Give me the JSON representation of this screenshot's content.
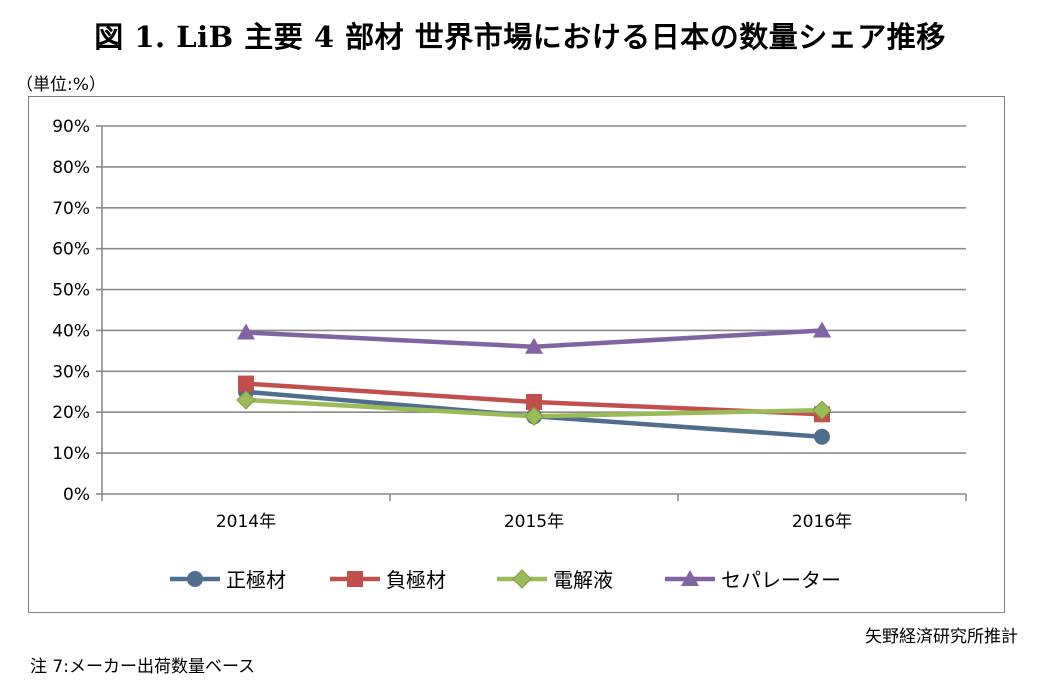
{
  "header": {
    "title": "図 1. LiB 主要 4 部材 世界市場における日本の数量シェア推移",
    "unit_label": "（単位:%）"
  },
  "footer": {
    "source": "矢野経済研究所推計",
    "note": "注 7:メーカー出荷数量ベース"
  },
  "chart_data": {
    "type": "line",
    "categories": [
      "2014年",
      "2015年",
      "2016年"
    ],
    "ylim": [
      0,
      90
    ],
    "yticks": [
      0,
      10,
      20,
      30,
      40,
      50,
      60,
      70,
      80,
      90
    ],
    "ytick_labels": [
      "0%",
      "10%",
      "20%",
      "30%",
      "40%",
      "50%",
      "60%",
      "70%",
      "80%",
      "90%"
    ],
    "grid": true,
    "legend_position": "bottom",
    "series": [
      {
        "name": "正極材",
        "values": [
          25,
          19,
          14
        ],
        "color": "#4f6d8c",
        "marker": "circle"
      },
      {
        "name": "負極材",
        "values": [
          27,
          22.5,
          19.5
        ],
        "color": "#c0504d",
        "marker": "square"
      },
      {
        "name": "電解液",
        "values": [
          23,
          19,
          20.5
        ],
        "color": "#9bbb59",
        "marker": "diamond"
      },
      {
        "name": "セパレーター",
        "values": [
          39.5,
          36,
          40
        ],
        "color": "#8064a2",
        "marker": "triangle"
      }
    ]
  }
}
